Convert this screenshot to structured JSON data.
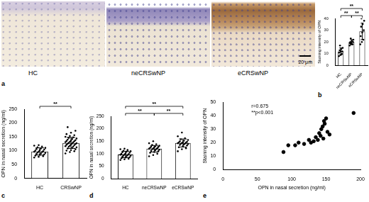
{
  "image_panel": {
    "panel": "a",
    "labels": [
      "HC",
      "neCRSwNP",
      "eCRSwNP"
    ],
    "scale_bar": "20 μm"
  },
  "chart_data": [
    {
      "panel": "b",
      "type": "bar",
      "categories": [
        "HC",
        "neCRSwNP",
        "eCRSwNP"
      ],
      "values": [
        12,
        20,
        29
      ],
      "errors": [
        3,
        2,
        7
      ],
      "points": [
        [
          8,
          9,
          10,
          11,
          12,
          12,
          13,
          14,
          15,
          17
        ],
        [
          17,
          18,
          18,
          19,
          19,
          20,
          20,
          21,
          22,
          23
        ],
        [
          18,
          20,
          22,
          25,
          28,
          30,
          33,
          35,
          38,
          40
        ]
      ],
      "y_label": "Staining intensity of OPN",
      "ylim": [
        0,
        40
      ],
      "yticks": [
        0,
        10,
        20,
        30,
        40
      ],
      "color": "#ffffff",
      "grid": false,
      "comparisons": [
        {
          "from": "HC",
          "to": "neCRSwNP",
          "label": "**"
        },
        {
          "from": "neCRSwNP",
          "to": "eCRSwNP",
          "label": "**"
        },
        {
          "from": "HC",
          "to": "eCRSwNP",
          "label": "**"
        }
      ]
    },
    {
      "panel": "c",
      "type": "bar",
      "categories": [
        "HC",
        "CRSwNP"
      ],
      "values": [
        97,
        128
      ],
      "errors": [
        13,
        20
      ],
      "points": [
        [
          75,
          78,
          80,
          82,
          85,
          86,
          88,
          90,
          92,
          93,
          95,
          96,
          97,
          98,
          100,
          102,
          104,
          106,
          108,
          110,
          112,
          115,
          118,
          120
        ],
        [
          90,
          95,
          98,
          100,
          102,
          105,
          108,
          110,
          112,
          114,
          115,
          116,
          118,
          120,
          121,
          122,
          124,
          125,
          126,
          127,
          128,
          130,
          131,
          132,
          134,
          135,
          136,
          138,
          140,
          142,
          144,
          146,
          148,
          150,
          153,
          156,
          160,
          165,
          172,
          185
        ]
      ],
      "y_label": "OPN in nasal secretion (ng/ml)",
      "ylim": [
        0,
        250
      ],
      "yticks": [
        0,
        50,
        100,
        150,
        200,
        250
      ],
      "color": "#ffffff",
      "grid": false,
      "comparisons": [
        {
          "from": "HC",
          "to": "CRSwNP",
          "label": "**"
        }
      ]
    },
    {
      "panel": "d",
      "type": "bar",
      "categories": [
        "HC",
        "neCRSwNP",
        "eCRSwNP"
      ],
      "values": [
        97,
        120,
        143
      ],
      "errors": [
        13,
        13,
        16
      ],
      "points": [
        [
          75,
          78,
          80,
          82,
          85,
          86,
          88,
          90,
          92,
          93,
          95,
          96,
          97,
          98,
          100,
          102,
          104,
          106,
          108,
          110,
          112,
          115,
          118,
          120
        ],
        [
          90,
          95,
          100,
          104,
          107,
          110,
          112,
          114,
          116,
          118,
          119,
          120,
          121,
          122,
          124,
          125,
          127,
          128,
          130,
          132,
          135,
          138,
          142,
          150
        ],
        [
          110,
          118,
          122,
          126,
          130,
          133,
          135,
          137,
          139,
          140,
          141,
          142,
          143,
          144,
          145,
          146,
          148,
          150,
          152,
          155,
          158,
          162,
          170,
          185
        ]
      ],
      "y_label": "OPN in nasal secretion (ng/ml)",
      "ylim": [
        0,
        250
      ],
      "yticks": [
        0,
        50,
        100,
        150,
        200,
        250
      ],
      "color": "#ffffff",
      "grid": false,
      "comparisons": [
        {
          "from": "HC",
          "to": "neCRSwNP",
          "label": "**"
        },
        {
          "from": "neCRSwNP",
          "to": "eCRSwNP",
          "label": "**"
        },
        {
          "from": "HC",
          "to": "eCRSwNP",
          "label": "**"
        }
      ]
    },
    {
      "panel": "e",
      "type": "scatter",
      "x": [
        88,
        95,
        105,
        110,
        118,
        125,
        128,
        132,
        135,
        138,
        140,
        142,
        143,
        145,
        146,
        147,
        148,
        150,
        152,
        155,
        190
      ],
      "values": [
        13,
        18,
        18,
        20,
        19,
        22,
        20,
        21,
        24,
        22,
        27,
        25,
        30,
        32,
        23,
        36,
        34,
        38,
        28,
        26,
        42
      ],
      "x_label": "OPN in nasal secretion (ng/ml)",
      "y_label": "Staining intensity of OPN",
      "xlim": [
        0,
        200
      ],
      "xticks": [
        0,
        50,
        100,
        150,
        200
      ],
      "ylim": [
        0,
        50
      ],
      "yticks": [
        0,
        10,
        20,
        30,
        40,
        50
      ],
      "color": "#000000",
      "grid": false,
      "annotations": [
        "r=0.675",
        "**p<0.001"
      ]
    }
  ]
}
